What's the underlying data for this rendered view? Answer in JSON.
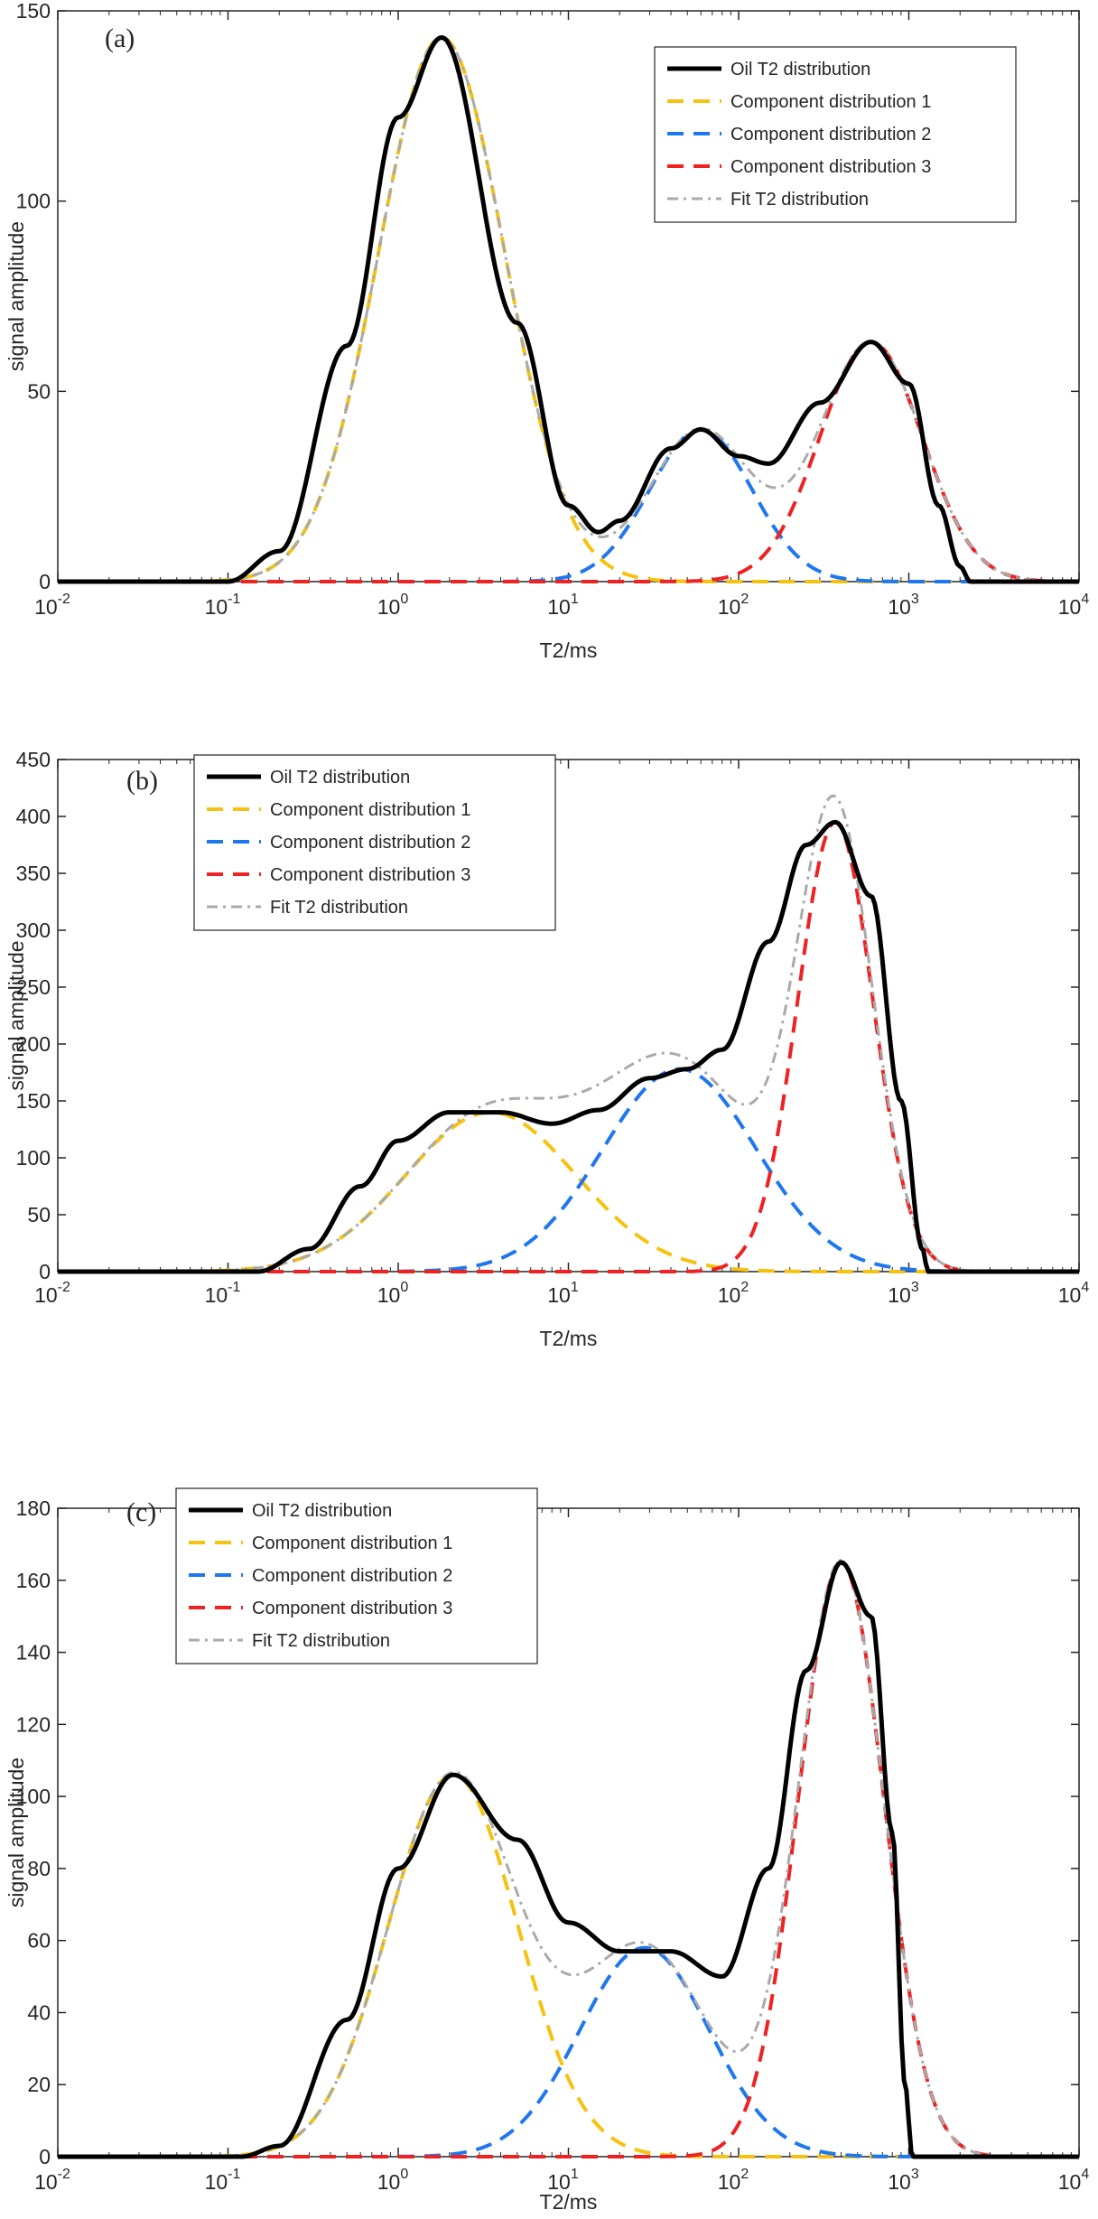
{
  "chart_data": [
    {
      "type": "line",
      "panel_label": "(a)",
      "xlabel": "T2/ms",
      "ylabel": "signal amplitude",
      "xscale": "log",
      "xlim": [
        0.01,
        10000
      ],
      "ylim": [
        0,
        150
      ],
      "yticks": [
        0,
        50,
        100,
        150
      ],
      "xtick_labels": [
        {
          "base": "10",
          "exp": "-2"
        },
        {
          "base": "10",
          "exp": "-1"
        },
        {
          "base": "10",
          "exp": "0"
        },
        {
          "base": "10",
          "exp": "1"
        },
        {
          "base": "10",
          "exp": "2"
        },
        {
          "base": "10",
          "exp": "3"
        },
        {
          "base": "10",
          "exp": "4"
        }
      ],
      "legend_position": "top-right",
      "components": [
        {
          "name": "Component distribution 1",
          "peak_t2": 1.8,
          "amplitude": 143,
          "width_decades": 0.37
        },
        {
          "name": "Component distribution 2",
          "peak_t2": 60,
          "amplitude": 40,
          "width_decades": 0.3
        },
        {
          "name": "Component distribution 3",
          "peak_t2": 600,
          "amplitude": 63,
          "width_decades": 0.3
        }
      ],
      "oil_t2_distribution": {
        "t2": [
          0.1,
          0.2,
          0.5,
          1,
          1.8,
          5,
          10,
          15,
          20,
          40,
          60,
          100,
          150,
          300,
          600,
          1000,
          1500,
          2000,
          2300
        ],
        "values": [
          0,
          8,
          62,
          122,
          143,
          68,
          20,
          13,
          16,
          35,
          40,
          33,
          31,
          47,
          63,
          52,
          20,
          4,
          0
        ]
      },
      "series": [
        {
          "name": "Oil T2 distribution",
          "color": "#000000",
          "style": "solid"
        },
        {
          "name": "Component distribution 1",
          "color": "#f5c211",
          "style": "dashed"
        },
        {
          "name": "Component distribution 2",
          "color": "#1f77f0",
          "style": "dashed"
        },
        {
          "name": "Component distribution 3",
          "color": "#ee2222",
          "style": "dashed"
        },
        {
          "name": "Fit T2 distribution",
          "color": "#aaaaaa",
          "style": "dash-dot-x"
        }
      ]
    },
    {
      "type": "line",
      "panel_label": "(b)",
      "xlabel": "T2/ms",
      "ylabel": "signal amplitude",
      "xscale": "log",
      "xlim": [
        0.01,
        10000
      ],
      "ylim": [
        0,
        450
      ],
      "yticks": [
        0,
        50,
        100,
        150,
        200,
        250,
        300,
        350,
        400,
        450
      ],
      "xtick_labels": [
        {
          "base": "10",
          "exp": "-2"
        },
        {
          "base": "10",
          "exp": "-1"
        },
        {
          "base": "10",
          "exp": "0"
        },
        {
          "base": "10",
          "exp": "1"
        },
        {
          "base": "10",
          "exp": "2"
        },
        {
          "base": "10",
          "exp": "3"
        },
        {
          "base": "10",
          "exp": "4"
        }
      ],
      "legend_position": "top-left",
      "components": [
        {
          "name": "Component distribution 1",
          "peak_t2": 3.5,
          "amplitude": 140,
          "width_decades": 0.5
        },
        {
          "name": "Component distribution 2",
          "peak_t2": 45,
          "amplitude": 178,
          "width_decades": 0.45
        },
        {
          "name": "Component distribution 3",
          "peak_t2": 370,
          "amplitude": 395,
          "width_decades": 0.22
        }
      ],
      "oil_t2_distribution": {
        "t2": [
          0.15,
          0.3,
          0.6,
          1,
          2,
          4,
          8,
          15,
          30,
          50,
          80,
          150,
          250,
          370,
          600,
          900,
          1200,
          1300
        ],
        "values": [
          0,
          20,
          75,
          115,
          140,
          140,
          130,
          142,
          170,
          178,
          195,
          290,
          375,
          395,
          330,
          150,
          20,
          0
        ]
      },
      "series": [
        {
          "name": "Oil T2 distribution",
          "color": "#000000",
          "style": "solid"
        },
        {
          "name": "Component distribution 1",
          "color": "#f5c211",
          "style": "dashed"
        },
        {
          "name": "Component distribution 2",
          "color": "#1f77f0",
          "style": "dashed"
        },
        {
          "name": "Component distribution 3",
          "color": "#ee2222",
          "style": "dashed"
        },
        {
          "name": "Fit T2 distribution",
          "color": "#aaaaaa",
          "style": "dash-dot-x"
        }
      ]
    },
    {
      "type": "line",
      "panel_label": "(c)",
      "xlabel": "T2/ms",
      "ylabel": "signal amplitude",
      "xscale": "log",
      "xlim": [
        0.01,
        10000
      ],
      "ylim": [
        0,
        180
      ],
      "yticks": [
        0,
        20,
        40,
        60,
        80,
        100,
        120,
        140,
        160,
        180
      ],
      "xtick_labels": [
        {
          "base": "10",
          "exp": "-2"
        },
        {
          "base": "10",
          "exp": "-1"
        },
        {
          "base": "10",
          "exp": "0"
        },
        {
          "base": "10",
          "exp": "1"
        },
        {
          "base": "10",
          "exp": "2"
        },
        {
          "base": "10",
          "exp": "3"
        },
        {
          "base": "10",
          "exp": "4"
        }
      ],
      "legend_position": "top-left",
      "components": [
        {
          "name": "Component distribution 1",
          "peak_t2": 2.1,
          "amplitude": 106,
          "width_decades": 0.38
        },
        {
          "name": "Component distribution 2",
          "peak_t2": 28,
          "amplitude": 58,
          "width_decades": 0.38
        },
        {
          "name": "Component distribution 3",
          "peak_t2": 400,
          "amplitude": 165,
          "width_decades": 0.25
        }
      ],
      "oil_t2_distribution": {
        "t2": [
          0.12,
          0.2,
          0.5,
          1,
          2.1,
          5,
          10,
          20,
          40,
          80,
          150,
          250,
          400,
          600,
          800,
          950,
          1050
        ],
        "values": [
          0,
          3,
          38,
          80,
          106,
          88,
          65,
          57,
          57,
          50,
          80,
          135,
          165,
          150,
          90,
          20,
          0
        ]
      },
      "series": [
        {
          "name": "Oil T2 distribution",
          "color": "#000000",
          "style": "solid"
        },
        {
          "name": "Component distribution 1",
          "color": "#f5c211",
          "style": "dashed"
        },
        {
          "name": "Component distribution 2",
          "color": "#1f77f0",
          "style": "dashed"
        },
        {
          "name": "Component distribution 3",
          "color": "#ee2222",
          "style": "dashed"
        },
        {
          "name": "Fit T2 distribution",
          "color": "#aaaaaa",
          "style": "dash-dot-x"
        }
      ]
    }
  ]
}
